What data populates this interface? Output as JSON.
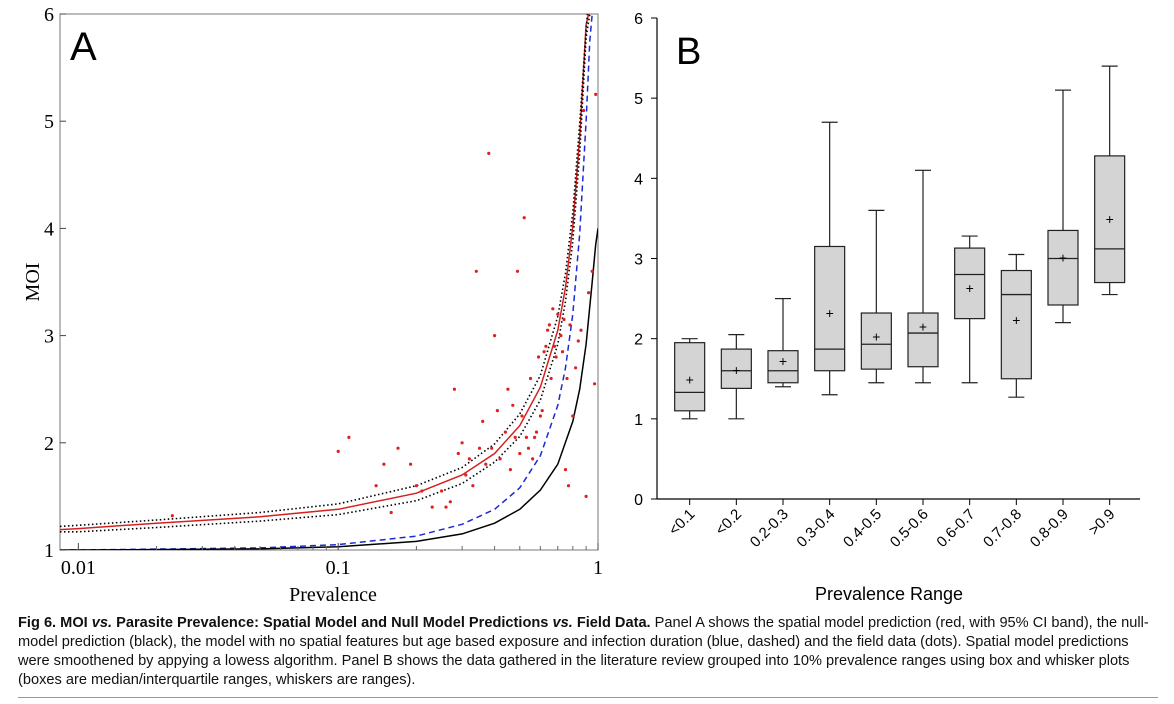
{
  "caption": {
    "label": "Fig 6.",
    "title_part1": "MOI ",
    "title_vs1": "vs.",
    "title_part2": " Parasite Prevalence: Spatial Model and Null Model Predictions ",
    "title_vs2": "vs.",
    "title_part3": " Field Data.",
    "body": " Panel A shows the spatial model prediction (red, with 95% CI band), the null-model prediction (black), the model with no spatial features but age based exposure and infection duration (blue, dashed) and the field data (dots). Spatial model predictions were smoothened by appying a lowess algorithm. Panel B shows the data gathered in the literature review grouped into 10% prevalence ranges using box and whisker plots (boxes are median/interquartile ranges, whiskers are ranges)."
  },
  "chart_data": [
    {
      "type": "line",
      "panel_label": "A",
      "xlabel": "Prevalence",
      "ylabel": "MOI",
      "x_scale": "log",
      "xlim": [
        0.0085,
        1
      ],
      "ylim": [
        1,
        6
      ],
      "x_ticks": [
        0.01,
        0.1,
        1
      ],
      "x_tick_labels": [
        "0.01",
        "0.1",
        "1"
      ],
      "y_ticks": [
        1,
        2,
        3,
        4,
        5,
        6
      ],
      "y_tick_labels": [
        "1",
        "2",
        "3",
        "4",
        "5",
        "6"
      ],
      "series": [
        {
          "color": "#d62020",
          "style": "solid",
          "x": [
            0.0085,
            0.01,
            0.02,
            0.05,
            0.1,
            0.2,
            0.3,
            0.4,
            0.5,
            0.6,
            0.7,
            0.75,
            0.8,
            0.85,
            0.9,
            0.92
          ],
          "y": [
            1.19,
            1.2,
            1.25,
            1.31,
            1.38,
            1.53,
            1.7,
            1.9,
            2.16,
            2.52,
            3.05,
            3.45,
            4.02,
            4.85,
            5.9,
            6.0
          ]
        },
        {
          "color": "#000000",
          "style": "dotted",
          "x": [
            0.0085,
            0.01,
            0.02,
            0.05,
            0.1,
            0.2,
            0.3,
            0.4,
            0.5,
            0.6,
            0.7,
            0.75,
            0.8,
            0.85,
            0.9,
            0.91
          ],
          "y": [
            1.22,
            1.23,
            1.28,
            1.35,
            1.43,
            1.6,
            1.77,
            1.99,
            2.27,
            2.63,
            3.18,
            3.58,
            4.15,
            4.98,
            5.85,
            6.0
          ]
        },
        {
          "color": "#000000",
          "style": "dotted",
          "x": [
            0.0085,
            0.01,
            0.02,
            0.05,
            0.1,
            0.2,
            0.3,
            0.4,
            0.5,
            0.6,
            0.7,
            0.75,
            0.8,
            0.85,
            0.9,
            0.93
          ],
          "y": [
            1.17,
            1.17,
            1.21,
            1.27,
            1.33,
            1.46,
            1.62,
            1.82,
            2.06,
            2.4,
            2.92,
            3.32,
            3.88,
            4.7,
            5.78,
            6.0
          ]
        },
        {
          "color": "#1a2ad6",
          "style": "dashed",
          "x": [
            0.0085,
            0.01,
            0.05,
            0.1,
            0.2,
            0.3,
            0.4,
            0.5,
            0.6,
            0.7,
            0.75,
            0.8,
            0.85,
            0.9,
            0.93,
            0.95
          ],
          "y": [
            1.0,
            1.0,
            1.02,
            1.05,
            1.13,
            1.24,
            1.38,
            1.58,
            1.88,
            2.35,
            2.7,
            3.2,
            3.95,
            5.0,
            5.75,
            6.0
          ]
        },
        {
          "color": "#000000",
          "style": "solid",
          "x": [
            0.0085,
            0.01,
            0.05,
            0.1,
            0.2,
            0.3,
            0.4,
            0.5,
            0.6,
            0.7,
            0.8,
            0.85,
            0.9,
            0.95,
            0.98,
            1.0
          ],
          "y": [
            1.0,
            1.0,
            1.01,
            1.03,
            1.08,
            1.15,
            1.25,
            1.38,
            1.56,
            1.8,
            2.2,
            2.5,
            2.92,
            3.5,
            3.85,
            4.0
          ]
        }
      ],
      "points": {
        "color": "#e02020",
        "x": [
          0.023,
          0.1,
          0.11,
          0.14,
          0.15,
          0.16,
          0.17,
          0.19,
          0.2,
          0.21,
          0.23,
          0.25,
          0.26,
          0.27,
          0.28,
          0.29,
          0.3,
          0.31,
          0.32,
          0.33,
          0.34,
          0.35,
          0.36,
          0.37,
          0.38,
          0.39,
          0.4,
          0.41,
          0.42,
          0.44,
          0.45,
          0.46,
          0.47,
          0.48,
          0.49,
          0.5,
          0.51,
          0.52,
          0.53,
          0.54,
          0.55,
          0.56,
          0.57,
          0.58,
          0.59,
          0.6,
          0.61,
          0.62,
          0.63,
          0.64,
          0.65,
          0.66,
          0.67,
          0.68,
          0.69,
          0.7,
          0.72,
          0.73,
          0.74,
          0.75,
          0.76,
          0.77,
          0.78,
          0.8,
          0.82,
          0.84,
          0.86,
          0.88,
          0.9,
          0.92,
          0.95,
          0.97,
          0.98
        ],
        "y": [
          1.32,
          1.92,
          2.05,
          1.6,
          1.8,
          1.35,
          1.95,
          1.8,
          1.6,
          1.55,
          1.4,
          1.55,
          1.4,
          1.45,
          2.5,
          1.9,
          2.0,
          1.7,
          1.85,
          1.6,
          3.6,
          1.95,
          2.2,
          1.8,
          4.7,
          1.95,
          3.0,
          2.3,
          1.85,
          2.1,
          2.5,
          1.75,
          2.35,
          2.05,
          3.6,
          1.9,
          2.25,
          4.1,
          2.05,
          1.95,
          2.6,
          1.85,
          2.05,
          2.1,
          2.8,
          2.25,
          2.3,
          2.85,
          2.9,
          3.05,
          3.1,
          2.6,
          3.25,
          2.9,
          2.8,
          3.2,
          3.0,
          2.85,
          3.15,
          1.75,
          2.6,
          1.6,
          3.1,
          2.25,
          2.7,
          2.95,
          3.05,
          5.1,
          1.5,
          3.4,
          3.6,
          2.55,
          5.25
        ]
      }
    },
    {
      "type": "box",
      "panel_label": "B",
      "xlabel": "Prevalence Range",
      "ylabel": "",
      "ylim": [
        0,
        6
      ],
      "y_ticks": [
        0,
        1,
        2,
        3,
        4,
        5,
        6
      ],
      "y_tick_labels": [
        "0",
        "1",
        "2",
        "3",
        "4",
        "5",
        "6"
      ],
      "categories": [
        "<0.1",
        "<0.2",
        "0.2-0.3",
        "0.3-0.4",
        "0.4-0.5",
        "0.5-0.6",
        "0.6-0.7",
        "0.7-0.8",
        "0.8-0.9",
        ">0.9"
      ],
      "boxes": [
        {
          "min": 1.0,
          "q1": 1.1,
          "median": 1.33,
          "q3": 1.95,
          "max": 2.0,
          "mean": 1.49
        },
        {
          "min": 1.0,
          "q1": 1.38,
          "median": 1.6,
          "q3": 1.87,
          "max": 2.05,
          "mean": 1.61
        },
        {
          "min": 1.4,
          "q1": 1.45,
          "median": 1.6,
          "q3": 1.85,
          "max": 2.5,
          "mean": 1.72
        },
        {
          "min": 1.3,
          "q1": 1.6,
          "median": 1.87,
          "q3": 3.15,
          "max": 4.7,
          "mean": 2.32
        },
        {
          "min": 1.45,
          "q1": 1.62,
          "median": 1.93,
          "q3": 2.32,
          "max": 3.6,
          "mean": 2.03
        },
        {
          "min": 1.45,
          "q1": 1.65,
          "median": 2.07,
          "q3": 2.32,
          "max": 4.1,
          "mean": 2.15
        },
        {
          "min": 1.45,
          "q1": 2.25,
          "median": 2.8,
          "q3": 3.13,
          "max": 3.28,
          "mean": 2.63
        },
        {
          "min": 1.27,
          "q1": 1.5,
          "median": 2.55,
          "q3": 2.85,
          "max": 3.05,
          "mean": 2.23
        },
        {
          "min": 2.2,
          "q1": 2.42,
          "median": 3.0,
          "q3": 3.35,
          "max": 5.1,
          "mean": 3.01
        },
        {
          "min": 2.55,
          "q1": 2.7,
          "median": 3.12,
          "q3": 4.28,
          "max": 5.4,
          "mean": 3.49
        }
      ],
      "box_fill": "#d4d4d4"
    }
  ]
}
